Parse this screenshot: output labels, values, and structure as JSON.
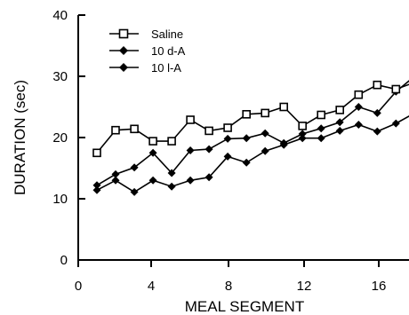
{
  "chart_data": {
    "type": "line",
    "title": "",
    "xlabel": "MEAL SEGMENT",
    "ylabel": "DURATION (sec)",
    "xlim": [
      0,
      17.7
    ],
    "ylim": [
      0,
      40
    ],
    "x_ticks": [
      "0",
      "4",
      "8",
      "12",
      "16"
    ],
    "y_ticks": [
      "0",
      "10",
      "20",
      "30",
      "40"
    ],
    "grid": false,
    "legend_position": "top-left",
    "x": [
      1,
      2,
      3,
      4,
      5,
      6,
      7,
      8,
      9,
      10,
      11,
      12,
      13,
      14,
      15,
      16,
      17,
      18
    ],
    "series": [
      {
        "name": "Saline",
        "marker": "square-open",
        "color": "#000000",
        "values": [
          17.5,
          21.2,
          21.4,
          19.4,
          19.4,
          22.9,
          21.1,
          21.6,
          23.8,
          24.0,
          25.0,
          21.9,
          23.7,
          24.5,
          27.0,
          28.6,
          27.9,
          29.0
        ]
      },
      {
        "name": "10 d-A",
        "marker": "diamond-filled",
        "color": "#000000",
        "values": [
          12.2,
          14.0,
          15.1,
          17.5,
          14.2,
          17.9,
          18.1,
          19.8,
          19.9,
          20.7,
          19.1,
          20.6,
          21.5,
          22.5,
          25.0,
          24.0,
          27.5,
          30.0
        ]
      },
      {
        "name": "10 l-A",
        "marker": "diamond-filled",
        "color": "#000000",
        "values": [
          11.4,
          13.0,
          11.1,
          13.0,
          12.0,
          13.0,
          13.5,
          16.9,
          15.9,
          17.8,
          18.8,
          19.9,
          19.9,
          21.1,
          22.1,
          21.0,
          22.3,
          24.0
        ]
      }
    ]
  }
}
